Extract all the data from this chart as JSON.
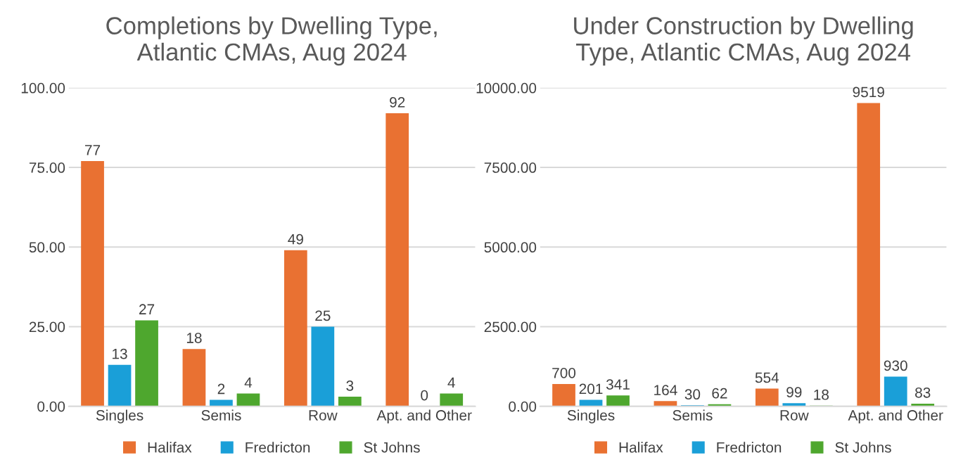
{
  "chart_data": [
    {
      "type": "bar",
      "title": "Completions by Dwelling Type,\nAtlantic CMAs, Aug 2024",
      "categories": [
        "Singles",
        "Semis",
        "Row",
        "Apt. and Other"
      ],
      "series": [
        {
          "name": "Halifax",
          "color": "#e97132",
          "values": [
            77,
            18,
            49,
            92
          ]
        },
        {
          "name": "Fredricton",
          "color": "#1a9fd8",
          "values": [
            13,
            2,
            25,
            0
          ]
        },
        {
          "name": "St Johns",
          "color": "#4ea72e",
          "values": [
            27,
            4,
            3,
            4
          ]
        }
      ],
      "ylim": [
        0,
        100
      ],
      "yticks": [
        {
          "value": 0,
          "label": "0.00"
        },
        {
          "value": 25,
          "label": "25.00"
        },
        {
          "value": 50,
          "label": "50.00"
        },
        {
          "value": 75,
          "label": "75.00"
        },
        {
          "value": 100,
          "label": "100.00"
        }
      ],
      "grid": "y",
      "legend": "bottom",
      "data_labels": true
    },
    {
      "type": "bar",
      "title": "Under Construction by Dwelling\nType, Atlantic CMAs, Aug 2024",
      "categories": [
        "Singles",
        "Semis",
        "Row",
        "Apt. and Other"
      ],
      "series": [
        {
          "name": "Halifax",
          "color": "#e97132",
          "values": [
            700,
            164,
            554,
            9519
          ]
        },
        {
          "name": "Fredricton",
          "color": "#1a9fd8",
          "values": [
            201,
            30,
            99,
            930
          ]
        },
        {
          "name": "St Johns",
          "color": "#4ea72e",
          "values": [
            341,
            62,
            18,
            83
          ]
        }
      ],
      "ylim": [
        0,
        10000
      ],
      "yticks": [
        {
          "value": 0,
          "label": "0.00"
        },
        {
          "value": 2500,
          "label": "2500.00"
        },
        {
          "value": 5000,
          "label": "5000.00"
        },
        {
          "value": 7500,
          "label": "7500.00"
        },
        {
          "value": 10000,
          "label": "10000.00"
        }
      ],
      "grid": "y",
      "legend": "bottom",
      "data_labels": true
    }
  ]
}
